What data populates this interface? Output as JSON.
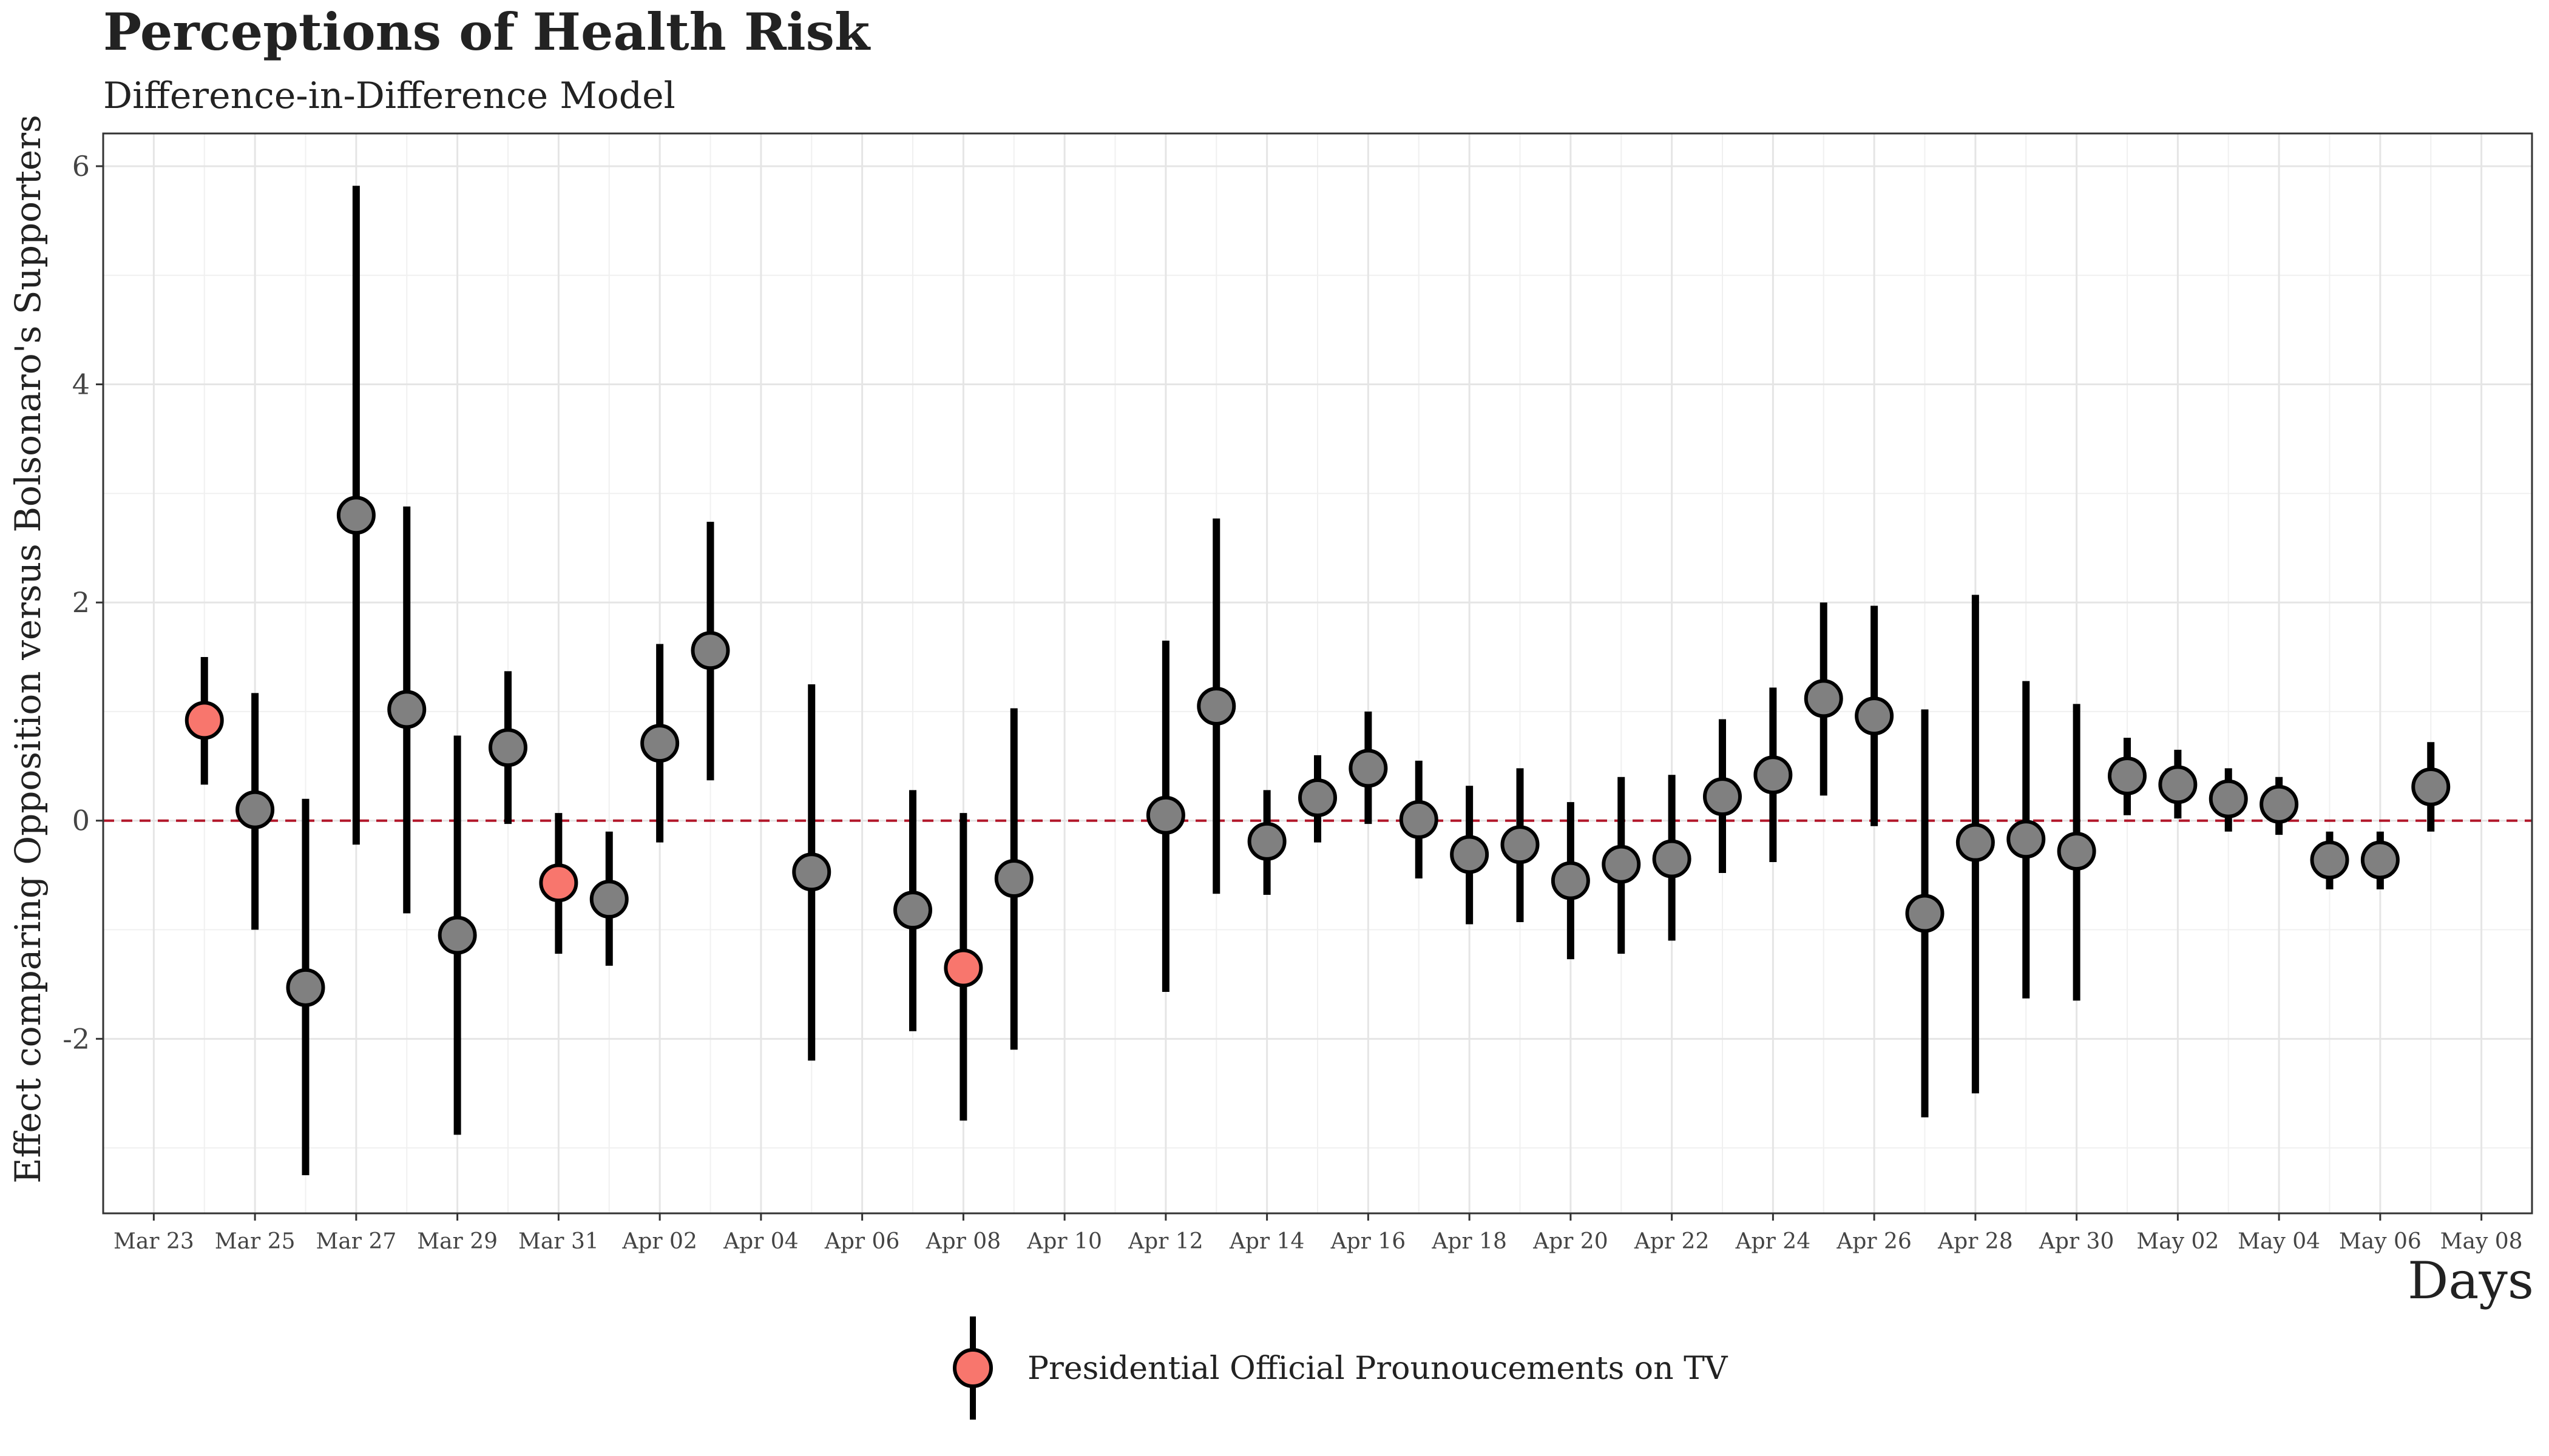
{
  "chart_data": {
    "type": "scatter",
    "title": "Perceptions of Health Risk",
    "subtitle": "Difference-in-Difference Model",
    "xlabel": "Days",
    "ylabel": "Effect comparing Opposition versus Bolsonaro's Supporters",
    "ylim": [
      -3.6,
      6.3
    ],
    "yticks": [
      -2,
      0,
      2,
      4,
      6
    ],
    "xlim": [
      "2020-03-22",
      "2020-05-09"
    ],
    "xtick_labels": [
      {
        "date": "2020-03-23",
        "label": "Mar 23"
      },
      {
        "date": "2020-03-25",
        "label": "Mar 25"
      },
      {
        "date": "2020-03-27",
        "label": "Mar 27"
      },
      {
        "date": "2020-03-29",
        "label": "Mar 29"
      },
      {
        "date": "2020-03-31",
        "label": "Mar 31"
      },
      {
        "date": "2020-04-02",
        "label": "Apr 02"
      },
      {
        "date": "2020-04-04",
        "label": "Apr 04"
      },
      {
        "date": "2020-04-06",
        "label": "Apr 06"
      },
      {
        "date": "2020-04-08",
        "label": "Apr 08"
      },
      {
        "date": "2020-04-10",
        "label": "Apr 10"
      },
      {
        "date": "2020-04-12",
        "label": "Apr 12"
      },
      {
        "date": "2020-04-14",
        "label": "Apr 14"
      },
      {
        "date": "2020-04-16",
        "label": "Apr 16"
      },
      {
        "date": "2020-04-18",
        "label": "Apr 18"
      },
      {
        "date": "2020-04-20",
        "label": "Apr 20"
      },
      {
        "date": "2020-04-22",
        "label": "Apr 22"
      },
      {
        "date": "2020-04-24",
        "label": "Apr 24"
      },
      {
        "date": "2020-04-26",
        "label": "Apr 26"
      },
      {
        "date": "2020-04-28",
        "label": "Apr 28"
      },
      {
        "date": "2020-04-30",
        "label": "Apr 30"
      },
      {
        "date": "2020-05-02",
        "label": "May 02"
      },
      {
        "date": "2020-05-04",
        "label": "May 04"
      },
      {
        "date": "2020-05-06",
        "label": "May 06"
      },
      {
        "date": "2020-05-08",
        "label": "May 08"
      }
    ],
    "reference_line": {
      "y": 0,
      "color": "#b2182b",
      "style": "dashed"
    },
    "grid": true,
    "legend": {
      "position": "bottom",
      "label": "Presidential Official Prounoucements on TV",
      "color": "#f8766d"
    },
    "colors": {
      "default": "#808080",
      "highlight": "#f8766d",
      "bar": "#000000"
    },
    "points": [
      {
        "date": "2020-03-24",
        "y": 0.92,
        "lo": 0.33,
        "hi": 1.5,
        "highlight": true
      },
      {
        "date": "2020-03-25",
        "y": 0.1,
        "lo": -1.0,
        "hi": 1.17,
        "highlight": false
      },
      {
        "date": "2020-03-26",
        "y": -1.53,
        "lo": -3.25,
        "hi": 0.2,
        "highlight": false
      },
      {
        "date": "2020-03-27",
        "y": 2.8,
        "lo": -0.22,
        "hi": 5.82,
        "highlight": false
      },
      {
        "date": "2020-03-28",
        "y": 1.02,
        "lo": -0.85,
        "hi": 2.88,
        "highlight": false
      },
      {
        "date": "2020-03-29",
        "y": -1.05,
        "lo": -2.88,
        "hi": 0.78,
        "highlight": false
      },
      {
        "date": "2020-03-30",
        "y": 0.67,
        "lo": -0.03,
        "hi": 1.37,
        "highlight": false
      },
      {
        "date": "2020-03-31",
        "y": -0.57,
        "lo": -1.22,
        "hi": 0.07,
        "highlight": true
      },
      {
        "date": "2020-04-01",
        "y": -0.72,
        "lo": -1.33,
        "hi": -0.1,
        "highlight": false
      },
      {
        "date": "2020-04-02",
        "y": 0.71,
        "lo": -0.2,
        "hi": 1.62,
        "highlight": false
      },
      {
        "date": "2020-04-03",
        "y": 1.56,
        "lo": 0.37,
        "hi": 2.74,
        "highlight": false
      },
      {
        "date": "2020-04-05",
        "y": -0.47,
        "lo": -2.2,
        "hi": 1.25,
        "highlight": false
      },
      {
        "date": "2020-04-07",
        "y": -0.82,
        "lo": -1.93,
        "hi": 0.28,
        "highlight": false
      },
      {
        "date": "2020-04-08",
        "y": -1.35,
        "lo": -2.75,
        "hi": 0.07,
        "highlight": true
      },
      {
        "date": "2020-04-09",
        "y": -0.53,
        "lo": -2.1,
        "hi": 1.03,
        "highlight": false
      },
      {
        "date": "2020-04-12",
        "y": 0.05,
        "lo": -1.57,
        "hi": 1.65,
        "highlight": false
      },
      {
        "date": "2020-04-13",
        "y": 1.05,
        "lo": -0.67,
        "hi": 2.77,
        "highlight": false
      },
      {
        "date": "2020-04-14",
        "y": -0.19,
        "lo": -0.68,
        "hi": 0.28,
        "highlight": false
      },
      {
        "date": "2020-04-15",
        "y": 0.21,
        "lo": -0.2,
        "hi": 0.6,
        "highlight": false
      },
      {
        "date": "2020-04-16",
        "y": 0.48,
        "lo": -0.03,
        "hi": 1.0,
        "highlight": false
      },
      {
        "date": "2020-04-17",
        "y": 0.01,
        "lo": -0.53,
        "hi": 0.55,
        "highlight": false
      },
      {
        "date": "2020-04-18",
        "y": -0.31,
        "lo": -0.95,
        "hi": 0.32,
        "highlight": false
      },
      {
        "date": "2020-04-19",
        "y": -0.22,
        "lo": -0.93,
        "hi": 0.48,
        "highlight": false
      },
      {
        "date": "2020-04-20",
        "y": -0.55,
        "lo": -1.27,
        "hi": 0.17,
        "highlight": false
      },
      {
        "date": "2020-04-21",
        "y": -0.4,
        "lo": -1.22,
        "hi": 0.4,
        "highlight": false
      },
      {
        "date": "2020-04-22",
        "y": -0.35,
        "lo": -1.1,
        "hi": 0.42,
        "highlight": false
      },
      {
        "date": "2020-04-23",
        "y": 0.22,
        "lo": -0.48,
        "hi": 0.93,
        "highlight": false
      },
      {
        "date": "2020-04-24",
        "y": 0.42,
        "lo": -0.38,
        "hi": 1.22,
        "highlight": false
      },
      {
        "date": "2020-04-25",
        "y": 1.12,
        "lo": 0.23,
        "hi": 2.0,
        "highlight": false
      },
      {
        "date": "2020-04-26",
        "y": 0.96,
        "lo": -0.05,
        "hi": 1.97,
        "highlight": false
      },
      {
        "date": "2020-04-27",
        "y": -0.85,
        "lo": -2.72,
        "hi": 1.02,
        "highlight": false
      },
      {
        "date": "2020-04-28",
        "y": -0.2,
        "lo": -2.5,
        "hi": 2.07,
        "highlight": false
      },
      {
        "date": "2020-04-29",
        "y": -0.17,
        "lo": -1.63,
        "hi": 1.28,
        "highlight": false
      },
      {
        "date": "2020-04-30",
        "y": -0.28,
        "lo": -1.65,
        "hi": 1.07,
        "highlight": false
      },
      {
        "date": "2020-05-01",
        "y": 0.41,
        "lo": 0.05,
        "hi": 0.76,
        "highlight": false
      },
      {
        "date": "2020-05-02",
        "y": 0.33,
        "lo": 0.02,
        "hi": 0.65,
        "highlight": false
      },
      {
        "date": "2020-05-03",
        "y": 0.2,
        "lo": -0.1,
        "hi": 0.48,
        "highlight": false
      },
      {
        "date": "2020-05-04",
        "y": 0.15,
        "lo": -0.13,
        "hi": 0.4,
        "highlight": false
      },
      {
        "date": "2020-05-05",
        "y": -0.36,
        "lo": -0.63,
        "hi": -0.1,
        "highlight": false
      },
      {
        "date": "2020-05-06",
        "y": -0.36,
        "lo": -0.63,
        "hi": -0.1,
        "highlight": false
      },
      {
        "date": "2020-05-07",
        "y": 0.31,
        "lo": -0.1,
        "hi": 0.72,
        "highlight": false
      }
    ]
  }
}
